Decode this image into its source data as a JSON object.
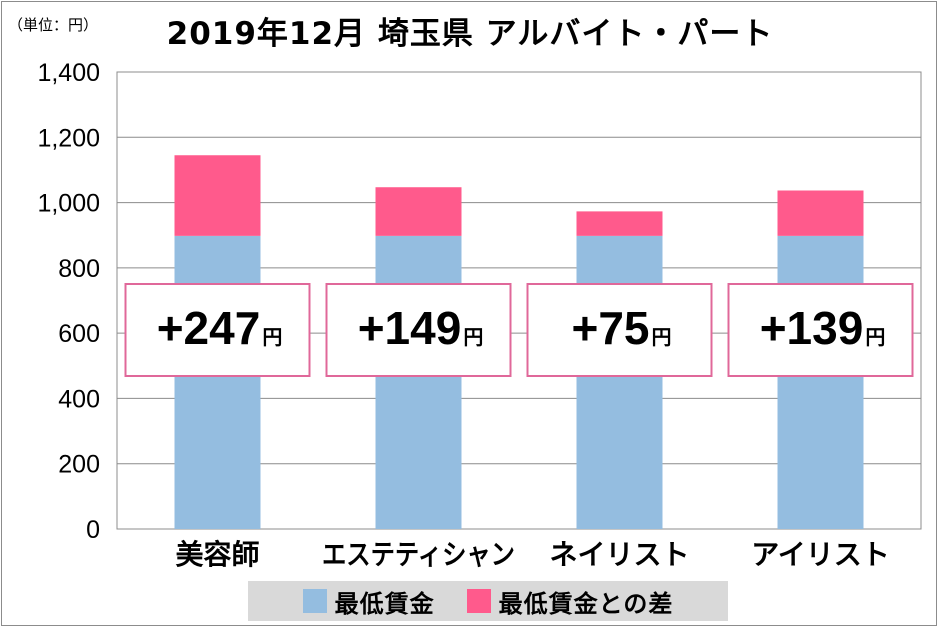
{
  "unit_label": "（単位：円）",
  "title": "2019年12月 埼玉県 アルバイト・パート",
  "chart_data": {
    "type": "bar",
    "stacked": true,
    "categories": [
      "美容師",
      "エステティシャン",
      "ネイリスト",
      "アイリスト"
    ],
    "series": [
      {
        "name": "最低賃金",
        "color": "#94bde0",
        "values": [
          898,
          898,
          898,
          898
        ]
      },
      {
        "name": "最低賃金との差",
        "color": "#ff5a8c",
        "values": [
          247,
          149,
          75,
          139
        ]
      }
    ],
    "annotations": [
      "+247",
      "+149",
      "+75",
      "+139"
    ],
    "annotation_unit": "円",
    "yticks": [
      "0",
      "200",
      "400",
      "600",
      "800",
      "1,000",
      "1,200",
      "1,400"
    ],
    "ylim": [
      0,
      1400
    ],
    "grid": true,
    "legend_position": "bottom"
  }
}
